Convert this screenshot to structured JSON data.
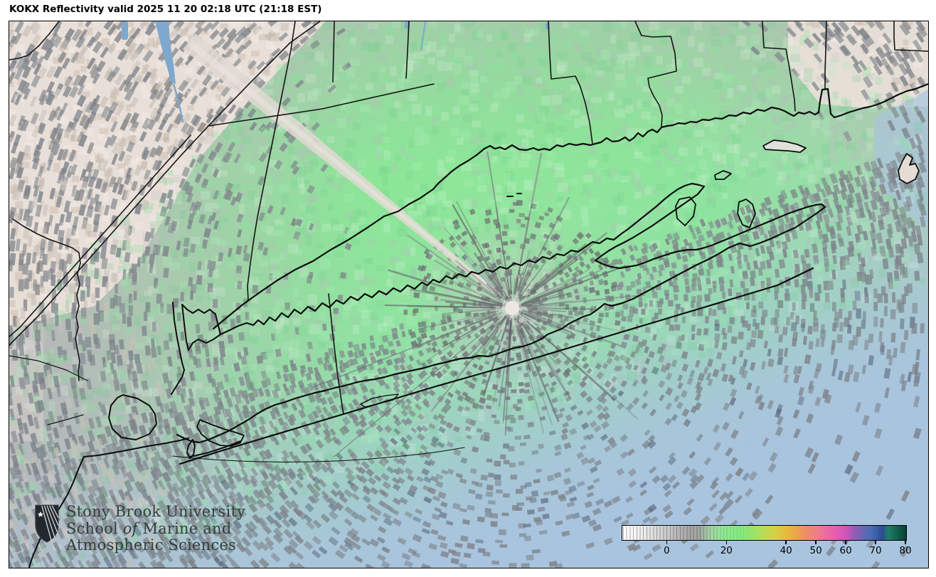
{
  "header": {
    "title": "KOKX Reflectivity valid 2025 11 20 02:18 UTC (21:18 EST)"
  },
  "branding": {
    "university": "Stony Brook University",
    "school_prefix": "School ",
    "school_of": "of",
    "school_suffix": " Marine and",
    "school_line2": "Atmospheric Sciences"
  },
  "colorbar": {
    "tick_values": [
      0,
      20,
      40,
      50,
      60,
      70,
      80
    ],
    "min_value": -15.1,
    "max_value": 80,
    "stops": [
      {
        "v": -15.1,
        "c": "#ffffff"
      },
      {
        "v": -10,
        "c": "#f3f3f3"
      },
      {
        "v": -5,
        "c": "#e1e1e1"
      },
      {
        "v": 0,
        "c": "#cacaca"
      },
      {
        "v": 4,
        "c": "#b5b5b6"
      },
      {
        "v": 8,
        "c": "#a5a5a7"
      },
      {
        "v": 11,
        "c": "#a0a8a1"
      },
      {
        "v": 14,
        "c": "#a6d0a4"
      },
      {
        "v": 17,
        "c": "#97e497"
      },
      {
        "v": 20,
        "c": "#8aeb8d"
      },
      {
        "v": 24,
        "c": "#83ea80"
      },
      {
        "v": 28,
        "c": "#96e56e"
      },
      {
        "v": 32,
        "c": "#b6dd58"
      },
      {
        "v": 36,
        "c": "#d6cf46"
      },
      {
        "v": 40,
        "c": "#e7ba3a"
      },
      {
        "v": 44,
        "c": "#ea9f51"
      },
      {
        "v": 47,
        "c": "#ee8a6d"
      },
      {
        "v": 50,
        "c": "#ee7f88"
      },
      {
        "v": 53,
        "c": "#ec6d9e"
      },
      {
        "v": 56,
        "c": "#e75fb0"
      },
      {
        "v": 60,
        "c": "#cd55b9"
      },
      {
        "v": 62,
        "c": "#a159b7"
      },
      {
        "v": 65,
        "c": "#7263b5"
      },
      {
        "v": 68,
        "c": "#4a6cb4"
      },
      {
        "v": 70,
        "c": "#3a5fa9"
      },
      {
        "v": 72,
        "c": "#2d4b92"
      },
      {
        "v": 74,
        "c": "#1f7e68"
      },
      {
        "v": 77,
        "c": "#11604b"
      },
      {
        "v": 80,
        "c": "#083f33"
      }
    ]
  },
  "map_palette": {
    "ocean": "#a9c4de",
    "echo_green": "#8be797",
    "terrain": "#e8dfd8",
    "noise_gray": "#7e838a",
    "coastline": "#0c0c0c"
  }
}
